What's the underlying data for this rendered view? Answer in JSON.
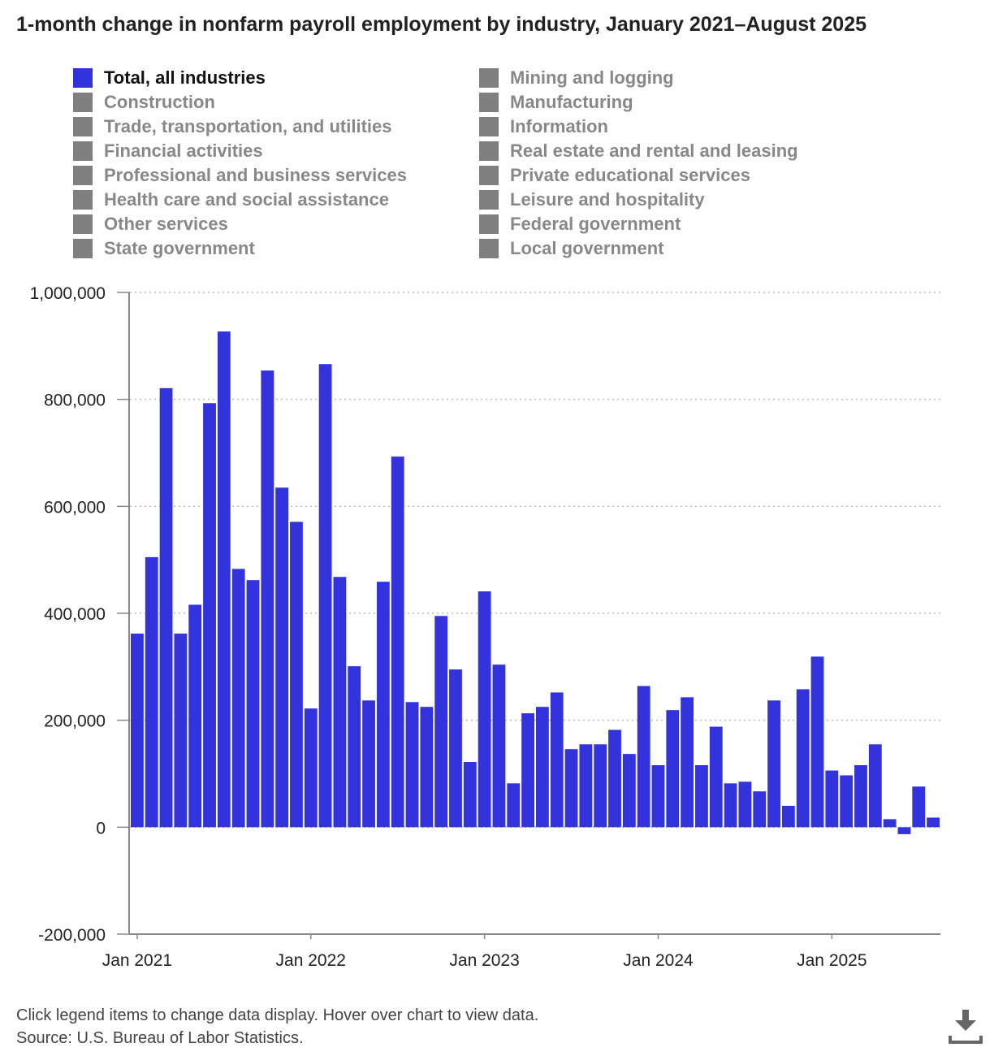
{
  "title": "1-month change in nonfarm payroll employment by industry, January 2021–August 2025",
  "legend": [
    {
      "label": "Total, all industries",
      "active": true
    },
    {
      "label": "Mining and logging",
      "active": false
    },
    {
      "label": "Construction",
      "active": false
    },
    {
      "label": "Manufacturing",
      "active": false
    },
    {
      "label": "Trade, transportation, and utilities",
      "active": false
    },
    {
      "label": "Information",
      "active": false
    },
    {
      "label": "Financial activities",
      "active": false
    },
    {
      "label": "Real estate and rental and leasing",
      "active": false
    },
    {
      "label": "Professional and business services",
      "active": false
    },
    {
      "label": "Private educational services",
      "active": false
    },
    {
      "label": "Health care and social assistance",
      "active": false
    },
    {
      "label": "Leisure and hospitality",
      "active": false
    },
    {
      "label": "Other services",
      "active": false
    },
    {
      "label": "Federal government",
      "active": false
    },
    {
      "label": "State government",
      "active": false
    },
    {
      "label": "Local government",
      "active": false
    }
  ],
  "chart_data": {
    "type": "bar",
    "title": "1-month change in nonfarm payroll employment by industry, January 2021–August 2025",
    "series": [
      {
        "name": "Total, all industries",
        "color": "#3333dd",
        "values": [
          362000,
          505000,
          821000,
          362000,
          416000,
          793000,
          927000,
          483000,
          462000,
          854000,
          635000,
          571000,
          222000,
          866000,
          468000,
          301000,
          237000,
          459000,
          693000,
          234000,
          225000,
          395000,
          295000,
          122000,
          441000,
          304000,
          82000,
          213000,
          225000,
          252000,
          146000,
          155000,
          155000,
          182000,
          137000,
          264000,
          116000,
          219000,
          243000,
          116000,
          188000,
          82000,
          85000,
          67000,
          237000,
          40000,
          258000,
          319000,
          106000,
          97000,
          116000,
          155000,
          15000,
          -13000,
          76000,
          18000
        ]
      }
    ],
    "x_start": "Jan 2021",
    "x_end": "Aug 2025",
    "ylim": [
      -200000,
      1000000
    ],
    "yticks": [
      -200000,
      0,
      200000,
      400000,
      600000,
      800000,
      1000000
    ],
    "ytick_labels": [
      "-200,000",
      "0",
      "200,000",
      "400,000",
      "600,000",
      "800,000",
      "1,000,000"
    ],
    "xtick_labels": [
      "Jan 2021",
      "Jan 2022",
      "Jan 2023",
      "Jan 2024",
      "Jan 2025"
    ],
    "grid": "horizontal dotted",
    "legend_position": "top"
  },
  "footer": {
    "note": "Click legend items to change data display. Hover over chart to view data.",
    "source": "Source: U.S. Bureau of Labor Statistics."
  },
  "icons": {
    "download": "download-icon"
  }
}
